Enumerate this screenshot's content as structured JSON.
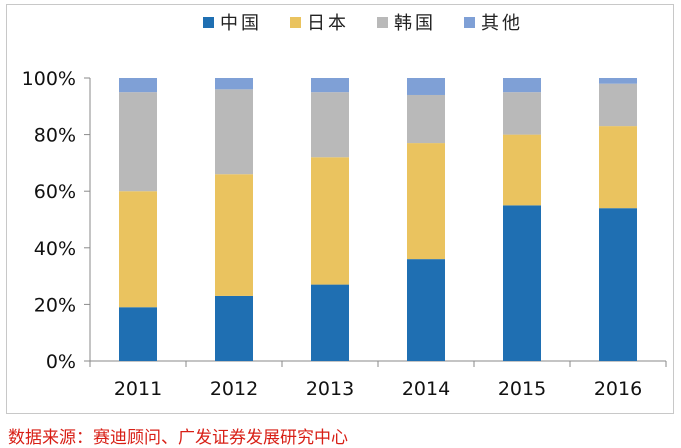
{
  "chart_data": {
    "type": "bar",
    "stacked": true,
    "categories": [
      "2011",
      "2012",
      "2013",
      "2014",
      "2015",
      "2016"
    ],
    "series": [
      {
        "name": "中国",
        "color": "#1f6fb2",
        "values": [
          19,
          23,
          27,
          36,
          55,
          54
        ]
      },
      {
        "name": "日本",
        "color": "#eac35f",
        "values": [
          41,
          43,
          45,
          41,
          25,
          29
        ]
      },
      {
        "name": "韩国",
        "color": "#b9b9b9",
        "values": [
          35,
          30,
          23,
          17,
          15,
          15
        ]
      },
      {
        "name": "其他",
        "color": "#7fa0d6",
        "values": [
          5,
          4,
          5,
          6,
          5,
          2
        ]
      }
    ],
    "ylim": [
      0,
      100
    ],
    "yticks": [
      "0%",
      "20%",
      "40%",
      "60%",
      "80%",
      "100%"
    ],
    "grid": false,
    "legend_position": "top"
  },
  "source": "数据来源：赛迪顾问、广发证券发展研究中心"
}
